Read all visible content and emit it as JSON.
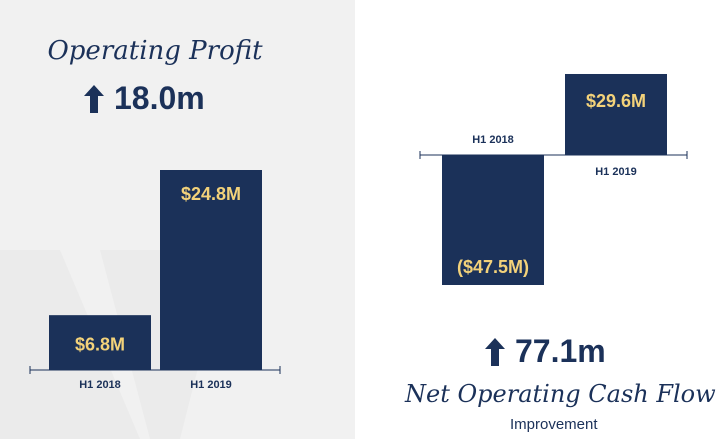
{
  "colors": {
    "bar": "#1b3159",
    "value_text": "#f3d27a",
    "title_text": "#1b3159",
    "axis": "#1b3159"
  },
  "left": {
    "title": "Operating Profit",
    "stat": "18.0m",
    "stat_icon": "arrow-up-icon"
  },
  "right": {
    "stat": "77.1m",
    "stat_icon": "arrow-up-icon",
    "title": "Net Operating Cash Flow",
    "subtitle": "Improvement"
  },
  "chart_data": [
    {
      "type": "bar",
      "categories": [
        "H1 2018",
        "H1 2019"
      ],
      "values": [
        6.8,
        24.8
      ],
      "data_labels": [
        "$6.8M",
        "$24.8M"
      ],
      "ylim": [
        0,
        24.8
      ],
      "title": "Operating Profit"
    },
    {
      "type": "bar",
      "categories": [
        "H1 2018",
        "H1 2019"
      ],
      "values": [
        -47.5,
        29.6
      ],
      "data_labels": [
        "($47.5M)",
        "$29.6M"
      ],
      "ylim": [
        -47.5,
        29.6
      ],
      "title": "Net Operating Cash Flow"
    }
  ]
}
